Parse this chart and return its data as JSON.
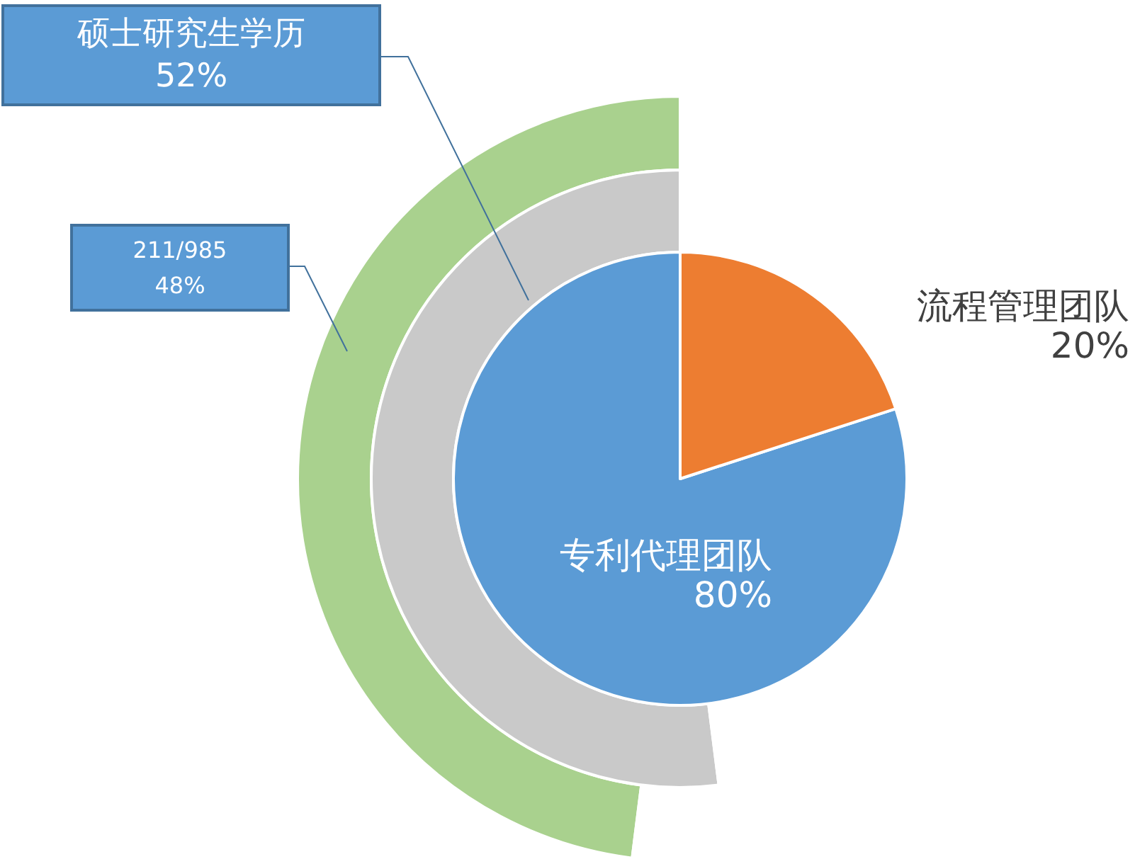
{
  "chart_data": [
    {
      "type": "pie",
      "categories": [
        "专利代理团队",
        "流程管理团队"
      ],
      "values": [
        80,
        20
      ],
      "colors": [
        "#5b9bd5",
        "#ed7d31"
      ],
      "value_labels": [
        "80%",
        "20%"
      ]
    },
    {
      "type": "donut",
      "categories": [
        "硕士研究生学历",
        null
      ],
      "values": [
        52,
        48
      ],
      "colors": [
        "#c9c9c9",
        "#ffffff"
      ],
      "value_labels": [
        "52%",
        null
      ]
    },
    {
      "type": "donut",
      "categories": [
        "211/985",
        null
      ],
      "values": [
        48,
        52
      ],
      "colors": [
        "#a9d18e",
        "#ffffff"
      ],
      "value_labels": [
        "48%",
        null
      ]
    }
  ]
}
